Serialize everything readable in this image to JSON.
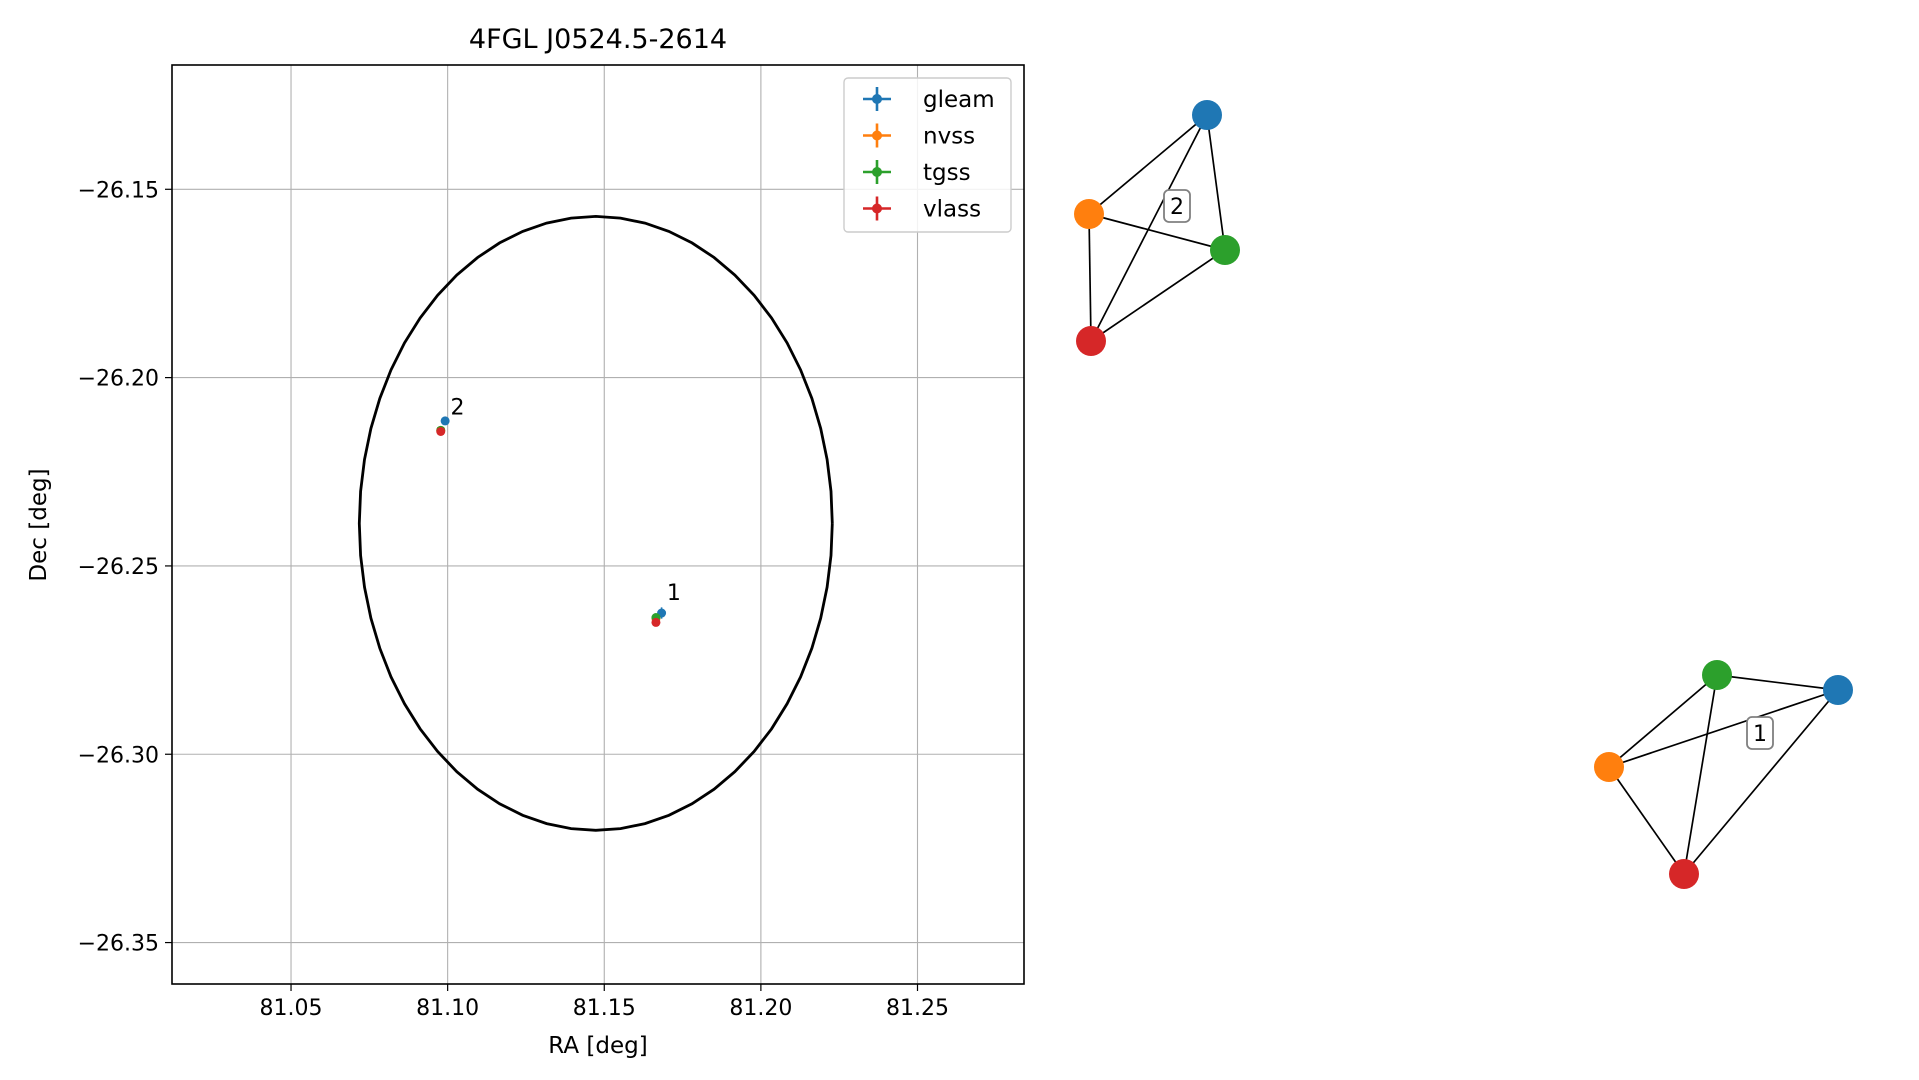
{
  "chart_data": {
    "type": "scatter",
    "title": "4FGL J0524.5-2614",
    "xlabel": "RA [deg]",
    "ylabel": "Dec [deg]",
    "xlim": [
      81.012,
      81.284
    ],
    "ylim": [
      -26.361,
      -26.117
    ],
    "xticks": [
      81.05,
      81.1,
      81.15,
      81.2,
      81.25
    ],
    "xtick_labels": [
      "81.05",
      "81.10",
      "81.15",
      "81.20",
      "81.25"
    ],
    "yticks": [
      -26.15,
      -26.2,
      -26.25,
      -26.3,
      -26.35
    ],
    "ytick_labels": [
      "−26.15",
      "−26.20",
      "−26.25",
      "−26.30",
      "−26.35"
    ],
    "grid": true,
    "legend_position": "top-right",
    "series": [
      {
        "name": "gleam",
        "color": "#1f77b4",
        "points": [
          {
            "x": 81.0992,
            "y": -26.2115,
            "xerr": 0.001,
            "yerr": 0.001
          },
          {
            "x": 81.1683,
            "y": -26.2625,
            "xerr": 0.0012,
            "yerr": 0.0015
          }
        ]
      },
      {
        "name": "nvss",
        "color": "#ff7f0e",
        "points": [
          {
            "x": 81.0978,
            "y": -26.214,
            "xerr": 0.0005,
            "yerr": 0.0005
          },
          {
            "x": 81.1665,
            "y": -26.264,
            "xerr": 0.0005,
            "yerr": 0.0006
          }
        ]
      },
      {
        "name": "tgss",
        "color": "#2ca02c",
        "points": [
          {
            "x": 81.0978,
            "y": -26.214,
            "xerr": 0.0004,
            "yerr": 0.0004
          },
          {
            "x": 81.1665,
            "y": -26.2637,
            "xerr": 0.0006,
            "yerr": 0.0006
          }
        ]
      },
      {
        "name": "vlass",
        "color": "#d62728",
        "points": [
          {
            "x": 81.0978,
            "y": -26.2143,
            "xerr": 0.0003,
            "yerr": 0.0003
          },
          {
            "x": 81.1665,
            "y": -26.265,
            "xerr": 0.0003,
            "yerr": 0.0003
          }
        ]
      }
    ],
    "annotations": [
      {
        "text": "2",
        "x": 81.1009,
        "y": -26.2098
      },
      {
        "text": "1",
        "x": 81.17,
        "y": -26.259
      }
    ],
    "ellipse": {
      "center_x": 81.1473,
      "center_y": -26.2387,
      "semi_x": 0.0755,
      "semi_y": 0.0815,
      "color": "#000000"
    }
  },
  "graphs": [
    {
      "label": "2",
      "nodes": [
        "gleam",
        "nvss",
        "tgss",
        "vlass"
      ],
      "edges": [
        [
          "gleam",
          "nvss"
        ],
        [
          "gleam",
          "tgss"
        ],
        [
          "gleam",
          "vlass"
        ],
        [
          "nvss",
          "tgss"
        ],
        [
          "nvss",
          "vlass"
        ],
        [
          "tgss",
          "vlass"
        ]
      ]
    },
    {
      "label": "1",
      "nodes": [
        "gleam",
        "nvss",
        "tgss",
        "vlass"
      ],
      "edges": [
        [
          "gleam",
          "nvss"
        ],
        [
          "gleam",
          "tgss"
        ],
        [
          "gleam",
          "vlass"
        ],
        [
          "nvss",
          "tgss"
        ],
        [
          "nvss",
          "vlass"
        ],
        [
          "tgss",
          "vlass"
        ]
      ]
    }
  ]
}
